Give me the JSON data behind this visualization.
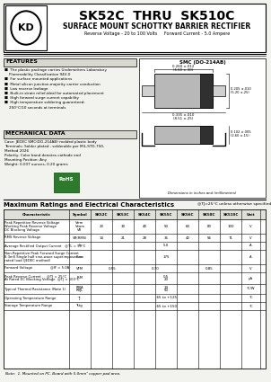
{
  "title_main": "SK52C  THRU  SK510C",
  "title_sub": "SURFACE MOUNT SCHOTTKY BARRIER RECTIFIER",
  "title_spec": "Reverse Voltage - 20 to 100 Volts     Forward Current - 5.0 Ampere",
  "features_title": "FEATURES",
  "feat_lines": [
    "■  The plastic package carries Underwriters Laboratory",
    "    Flammability Classification 94V-0",
    "■  For surface mounted applications",
    "■  Metal silicon junction,majority carrier conduction",
    "■  Low reverse leakage",
    "■  Built-in strain relief,ideal for automated placement",
    "■  High forward surge current capability",
    "■  High temperature soldering guaranteed:",
    "    250°C/10 seconds at terminals"
  ],
  "mech_title": "MECHANICAL DATA",
  "mech_lines": [
    "Case: JEDEC SMC(DO-214AB) molded plastic body",
    "Terminals: Solder plated , solderable per MIL-STD-750,",
    "Method 2026",
    "Polarity: Color band denotes cathode end",
    "Mounting Position: Any",
    "Weight: 0.007 ounces, 0.20 grams"
  ],
  "pkg_title": "SMC (DO-214AB)",
  "dim_note": "Dimensions in inches and (millimeters)",
  "table_title": "Maximum Ratings and Electrical Characteristics",
  "table_sub": "@TJ=25°C unless otherwise specified",
  "col_headers": [
    "Characteristic",
    "Symbol",
    "SK52C",
    "SK53C",
    "SK54C",
    "SK55C",
    "SK56C",
    "SK58C",
    "SK510C",
    "Unit"
  ],
  "note": "Note:  1. Mounted on PC. Board with 5.0mm² copper pad area.",
  "bg": "#f2f2ee",
  "white": "#ffffff",
  "gray_hdr": "#e0e0d8",
  "gray_feat": "#d8d8d0"
}
